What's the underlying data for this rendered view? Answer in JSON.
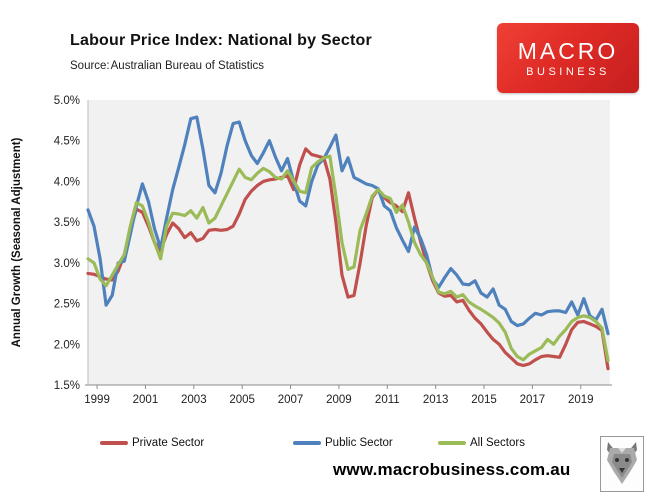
{
  "header": {
    "title": "Labour Price Index: National by Sector",
    "source_label": "Source:",
    "source_value": "Australian Bureau of Statistics"
  },
  "logo": {
    "line1": "MACRO",
    "line2": "BUSINESS",
    "bg_color": "#d8261f",
    "icon": "macrobusiness-logo"
  },
  "footer": {
    "url": "www.macrobusiness.com.au",
    "wolf_icon": "wolf-logo"
  },
  "chart_data": {
    "type": "line",
    "title": "Labour Price Index: National by Sector",
    "ylabel": "Annual Growth (Seasonal Adjustment)",
    "xlabel": "",
    "ylim": [
      1.5,
      5.0
    ],
    "y_tick_step": 0.5,
    "y_ticks": [
      "1.5%",
      "2.0%",
      "2.5%",
      "3.0%",
      "3.5%",
      "4.0%",
      "4.5%",
      "5.0%"
    ],
    "x_tick_labels": [
      "1999",
      "2001",
      "2003",
      "2005",
      "2007",
      "2009",
      "2011",
      "2013",
      "2015",
      "2017",
      "2019"
    ],
    "x_unit": "quarterly",
    "x_start": 1998.75,
    "x_step": 0.25,
    "x_end": 2020.25,
    "grid": false,
    "legend_position": "bottom",
    "plot_bg": "#f1f1f1",
    "axis_color": "#8c8c8c",
    "series": [
      {
        "name": "Private Sector",
        "color": "#C0504D",
        "values": [
          2.87,
          2.86,
          2.83,
          2.8,
          2.79,
          2.9,
          3.1,
          3.4,
          3.66,
          3.62,
          3.45,
          3.25,
          3.15,
          3.35,
          3.49,
          3.42,
          3.31,
          3.37,
          3.27,
          3.3,
          3.4,
          3.41,
          3.4,
          3.41,
          3.45,
          3.6,
          3.78,
          3.88,
          3.95,
          4.0,
          4.02,
          4.03,
          4.05,
          4.07,
          3.9,
          4.2,
          4.4,
          4.33,
          4.31,
          4.29,
          4.03,
          3.5,
          2.85,
          2.58,
          2.6,
          3.0,
          3.45,
          3.8,
          3.9,
          3.8,
          3.74,
          3.7,
          3.63,
          3.86,
          3.55,
          3.26,
          3.0,
          2.78,
          2.63,
          2.59,
          2.6,
          2.52,
          2.54,
          2.42,
          2.32,
          2.25,
          2.15,
          2.06,
          2.0,
          1.9,
          1.83,
          1.76,
          1.74,
          1.76,
          1.81,
          1.85,
          1.86,
          1.85,
          1.84,
          2.0,
          2.18,
          2.27,
          2.28,
          2.25,
          2.22,
          2.17,
          1.7
        ]
      },
      {
        "name": "Public Sector",
        "color": "#4F81BD",
        "values": [
          3.65,
          3.45,
          3.05,
          2.48,
          2.6,
          3.0,
          3.02,
          3.35,
          3.7,
          3.97,
          3.75,
          3.42,
          3.18,
          3.55,
          3.9,
          4.17,
          4.45,
          4.77,
          4.79,
          4.4,
          3.95,
          3.86,
          4.1,
          4.44,
          4.71,
          4.73,
          4.5,
          4.32,
          4.22,
          4.35,
          4.5,
          4.3,
          4.13,
          4.28,
          4.0,
          3.76,
          3.7,
          4.0,
          4.2,
          4.28,
          4.42,
          4.57,
          4.13,
          4.29,
          4.05,
          4.01,
          3.97,
          3.95,
          3.91,
          3.7,
          3.64,
          3.43,
          3.28,
          3.14,
          3.44,
          3.3,
          3.1,
          2.8,
          2.7,
          2.82,
          2.93,
          2.85,
          2.74,
          2.73,
          2.78,
          2.63,
          2.58,
          2.68,
          2.48,
          2.43,
          2.28,
          2.23,
          2.25,
          2.32,
          2.38,
          2.36,
          2.4,
          2.41,
          2.41,
          2.39,
          2.52,
          2.36,
          2.56,
          2.35,
          2.3,
          2.43,
          2.13
        ]
      },
      {
        "name": "All Sectors",
        "color": "#9BBB59",
        "values": [
          3.05,
          3.0,
          2.8,
          2.72,
          2.85,
          2.98,
          3.1,
          3.45,
          3.74,
          3.7,
          3.5,
          3.25,
          3.05,
          3.45,
          3.61,
          3.6,
          3.58,
          3.64,
          3.55,
          3.68,
          3.49,
          3.55,
          3.7,
          3.85,
          4.0,
          4.15,
          4.05,
          4.02,
          4.1,
          4.16,
          4.12,
          4.05,
          4.03,
          4.13,
          4.01,
          3.88,
          3.86,
          4.17,
          4.24,
          4.29,
          4.31,
          3.82,
          3.25,
          2.92,
          2.95,
          3.4,
          3.6,
          3.82,
          3.9,
          3.82,
          3.79,
          3.62,
          3.71,
          3.5,
          3.25,
          3.1,
          3.0,
          2.82,
          2.64,
          2.62,
          2.65,
          2.58,
          2.61,
          2.52,
          2.47,
          2.43,
          2.38,
          2.33,
          2.26,
          2.15,
          1.95,
          1.85,
          1.81,
          1.88,
          1.92,
          1.96,
          2.06,
          2.0,
          2.1,
          2.18,
          2.28,
          2.33,
          2.35,
          2.33,
          2.28,
          2.2,
          1.8
        ]
      }
    ]
  }
}
